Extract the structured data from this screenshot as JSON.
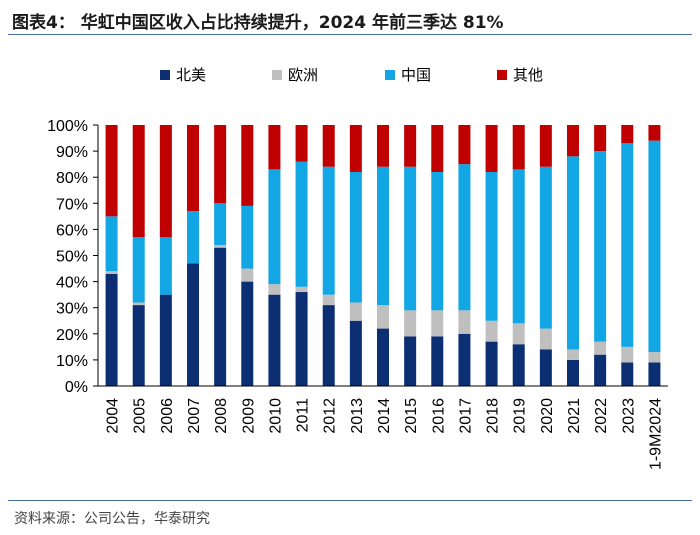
{
  "header": {
    "title": "图表4： 华虹中国区收入占比持续提升，2024 年前三季达 81%"
  },
  "footer": {
    "source": "资料来源：公司公告，华泰研究"
  },
  "chart_data": {
    "type": "stacked-bar-100",
    "title": "图表4： 华虹中国区收入占比持续提升，2024 年前三季达 81%",
    "categories": [
      "2004",
      "2005",
      "2006",
      "2007",
      "2008",
      "2009",
      "2010",
      "2011",
      "2012",
      "2013",
      "2014",
      "2015",
      "2016",
      "2017",
      "2018",
      "2019",
      "2020",
      "2021",
      "2022",
      "2023",
      "1-9M2024"
    ],
    "series": [
      {
        "name": "北美",
        "color": "#0b2f72",
        "values": [
          43,
          31,
          35,
          47,
          53,
          40,
          35,
          36,
          31,
          25,
          22,
          19,
          19,
          20,
          17,
          16,
          14,
          10,
          12,
          9,
          9
        ]
      },
      {
        "name": "欧洲",
        "color": "#bfbfbf",
        "values": [
          1,
          1,
          0,
          0,
          1,
          5,
          4,
          2,
          4,
          7,
          9,
          10,
          10,
          9,
          8,
          8,
          8,
          4,
          5,
          6,
          4
        ]
      },
      {
        "name": "中国",
        "color": "#12a6e4",
        "values": [
          21,
          25,
          22,
          20,
          16,
          24,
          44,
          48,
          49,
          50,
          53,
          55,
          53,
          56,
          57,
          59,
          62,
          74,
          73,
          78,
          81
        ]
      },
      {
        "name": "其他",
        "color": "#c00000",
        "values": [
          35,
          43,
          43,
          33,
          30,
          31,
          17,
          14,
          16,
          18,
          16,
          16,
          18,
          15,
          18,
          17,
          16,
          12,
          10,
          7,
          6
        ]
      }
    ],
    "yticks": [
      "0%",
      "10%",
      "20%",
      "30%",
      "40%",
      "50%",
      "60%",
      "70%",
      "80%",
      "90%",
      "100%"
    ],
    "ylim": [
      0,
      100
    ],
    "legend_position": "top"
  }
}
